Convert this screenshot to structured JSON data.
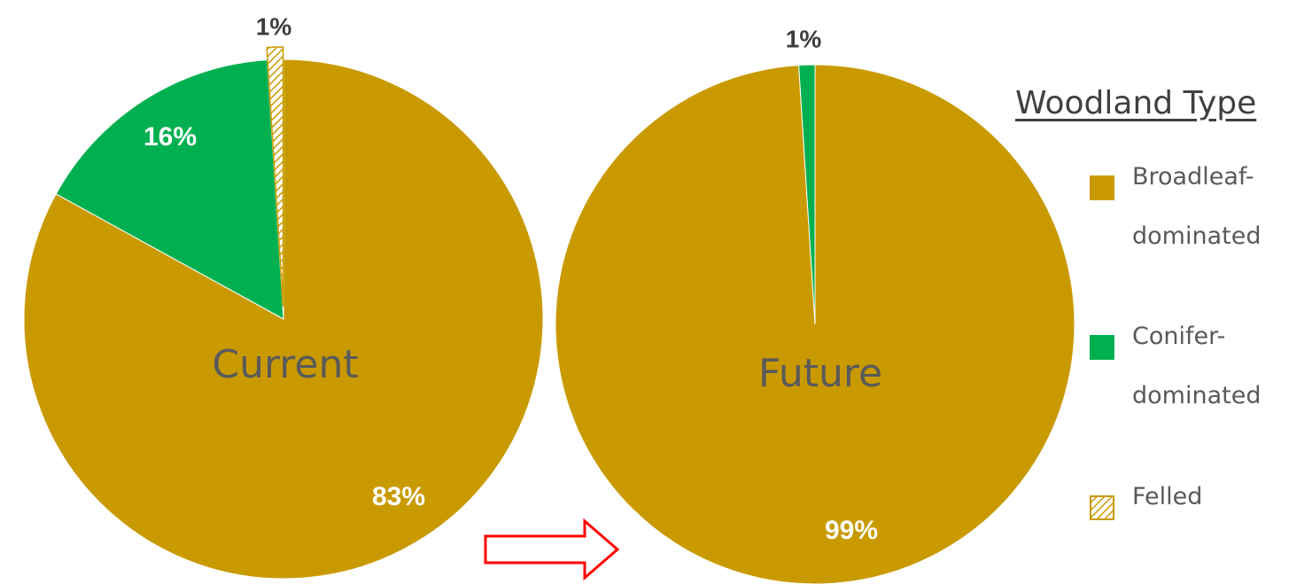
{
  "chart_data": [
    {
      "type": "pie",
      "center_label": "Current",
      "slices": [
        {
          "label": "Broadleaf-dominated",
          "value": 83,
          "display": "83%",
          "color": "#c99a00"
        },
        {
          "label": "Conifer-dominated",
          "value": 16,
          "display": "16%",
          "color": "#00b050"
        },
        {
          "label": "Felled",
          "value": 1,
          "display": "1%",
          "color": "#c99a00",
          "pattern": "hatched"
        }
      ]
    },
    {
      "type": "pie",
      "center_label": "Future",
      "slices": [
        {
          "label": "Broadleaf-dominated",
          "value": 99,
          "display": "99%",
          "color": "#c99a00"
        },
        {
          "label": "Conifer-dominated",
          "value": 1,
          "display": "1%",
          "color": "#00b050"
        }
      ]
    }
  ],
  "legend": {
    "title": "Woodland Type",
    "placement": "right",
    "items": [
      {
        "label_line1": "Broadleaf-",
        "label_line2": "dominated",
        "color": "#c99a00",
        "pattern": "solid"
      },
      {
        "label_line1": "Conifer-",
        "label_line2": "dominated",
        "color": "#00b050",
        "pattern": "solid"
      },
      {
        "label_line1": "Felled",
        "label_line2": "",
        "color": "#c99a00",
        "pattern": "hatched"
      }
    ]
  },
  "arrow": {
    "color": "#ff0000",
    "direction": "right"
  }
}
